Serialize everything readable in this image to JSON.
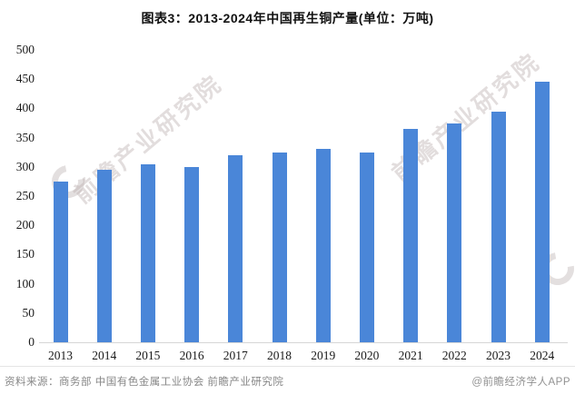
{
  "title": "图表3：2013-2024年中国再生铜产量(单位：万吨)",
  "chart_data": {
    "type": "bar",
    "title": "图表3：2013-2024年中国再生铜产量(单位：万吨)",
    "categories": [
      "2013",
      "2014",
      "2015",
      "2016",
      "2017",
      "2018",
      "2019",
      "2020",
      "2021",
      "2022",
      "2023",
      "2024"
    ],
    "values": [
      275,
      295,
      305,
      300,
      320,
      325,
      330,
      325,
      365,
      375,
      395,
      445
    ],
    "xlabel": "",
    "ylabel": "万吨",
    "ylim": [
      0,
      500
    ],
    "ytick_step": 50,
    "grid": false,
    "legend": "none",
    "bar_color": "#4a86d8"
  },
  "watermark": {
    "text": "前瞻产业研究院"
  },
  "footer": {
    "source": "资料来源：商务部 中国有色金属工业协会 前瞻产业研究院",
    "credit": "@前瞻经济学人APP"
  }
}
